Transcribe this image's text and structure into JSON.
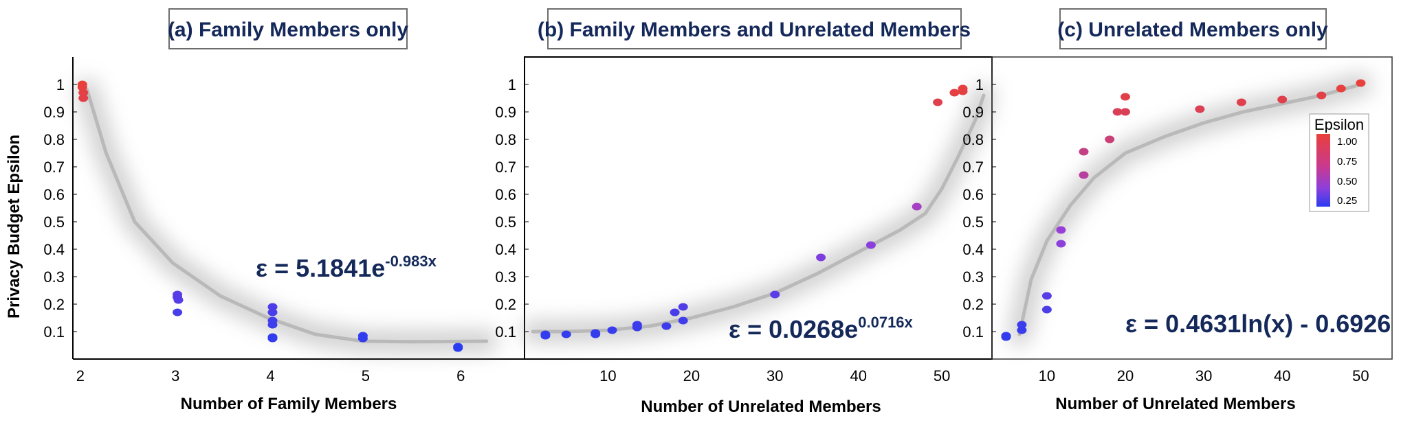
{
  "y_axis_title": "Privacy Budget Epsilon",
  "y_ticks": [
    "0.1",
    "0.2",
    "0.3",
    "0.4",
    "0.5",
    "0.6",
    "0.7",
    "0.8",
    "0.9",
    "1"
  ],
  "colors": {
    "title": "#14285a",
    "low": "#2a3cf0",
    "mid": "#9a3fd8",
    "high": "#e8403a",
    "trend": "#b9b9b9"
  },
  "legend": {
    "title": "Epsilon",
    "labels": [
      "1.00",
      "0.75",
      "0.50",
      "0.25"
    ]
  },
  "chart_data": [
    {
      "type": "scatter",
      "title": "(a) Family Members only",
      "xlabel": "Number of Family Members",
      "ylabel": "Privacy Budget Epsilon",
      "xlim": [
        1.95,
        6.7
      ],
      "ylim": [
        0,
        1.1
      ],
      "x_ticks": [
        "2",
        "3",
        "4",
        "5",
        "6"
      ],
      "equation": {
        "base": "ε = 5.1841e",
        "exp": "-0.983x"
      },
      "points": [
        {
          "x": 2.05,
          "y": 1.0
        },
        {
          "x": 2.05,
          "y": 0.99
        },
        {
          "x": 2.06,
          "y": 0.97
        },
        {
          "x": 2.06,
          "y": 0.95
        },
        {
          "x": 3.05,
          "y": 0.235
        },
        {
          "x": 3.05,
          "y": 0.225
        },
        {
          "x": 3.06,
          "y": 0.215
        },
        {
          "x": 3.05,
          "y": 0.17
        },
        {
          "x": 4.05,
          "y": 0.19
        },
        {
          "x": 4.05,
          "y": 0.17
        },
        {
          "x": 4.05,
          "y": 0.14
        },
        {
          "x": 4.05,
          "y": 0.125
        },
        {
          "x": 4.05,
          "y": 0.08
        },
        {
          "x": 4.05,
          "y": 0.075
        },
        {
          "x": 5.0,
          "y": 0.085
        },
        {
          "x": 5.0,
          "y": 0.075
        },
        {
          "x": 6.0,
          "y": 0.045
        },
        {
          "x": 6.0,
          "y": 0.04
        }
      ],
      "trend": [
        [
          2.1,
          0.98
        ],
        [
          2.3,
          0.75
        ],
        [
          2.6,
          0.5
        ],
        [
          3.0,
          0.35
        ],
        [
          3.5,
          0.23
        ],
        [
          4.0,
          0.15
        ],
        [
          4.5,
          0.09
        ],
        [
          5.0,
          0.065
        ],
        [
          5.5,
          0.063
        ],
        [
          6.0,
          0.064
        ],
        [
          6.3,
          0.065
        ]
      ]
    },
    {
      "type": "scatter",
      "title": "(b) Family Members and Unrelated Members",
      "xlabel": "Number of Unrelated Members",
      "ylabel": "",
      "xlim": [
        0,
        56
      ],
      "ylim": [
        0,
        1.1
      ],
      "x_ticks": [
        "10",
        "20",
        "30",
        "40",
        "50"
      ],
      "equation": {
        "base": "ε = 0.0268e",
        "exp": "0.0716x"
      },
      "points": [
        {
          "x": 2.5,
          "y": 0.09
        },
        {
          "x": 2.5,
          "y": 0.085
        },
        {
          "x": 5,
          "y": 0.09
        },
        {
          "x": 8.5,
          "y": 0.095
        },
        {
          "x": 8.5,
          "y": 0.09
        },
        {
          "x": 10.5,
          "y": 0.105
        },
        {
          "x": 13.5,
          "y": 0.125
        },
        {
          "x": 13.5,
          "y": 0.115
        },
        {
          "x": 17,
          "y": 0.12
        },
        {
          "x": 18,
          "y": 0.17
        },
        {
          "x": 19,
          "y": 0.19
        },
        {
          "x": 19,
          "y": 0.14
        },
        {
          "x": 30,
          "y": 0.235
        },
        {
          "x": 35.5,
          "y": 0.37
        },
        {
          "x": 41.5,
          "y": 0.415
        },
        {
          "x": 47,
          "y": 0.555
        },
        {
          "x": 49.5,
          "y": 0.935
        },
        {
          "x": 51.5,
          "y": 0.97
        },
        {
          "x": 52.5,
          "y": 0.985
        },
        {
          "x": 52.5,
          "y": 0.975
        }
      ],
      "trend": [
        [
          1,
          0.1
        ],
        [
          5,
          0.1
        ],
        [
          10,
          0.105
        ],
        [
          15,
          0.12
        ],
        [
          20,
          0.15
        ],
        [
          25,
          0.19
        ],
        [
          30,
          0.24
        ],
        [
          35,
          0.31
        ],
        [
          40,
          0.39
        ],
        [
          45,
          0.47
        ],
        [
          48,
          0.53
        ],
        [
          50,
          0.62
        ],
        [
          52,
          0.74
        ],
        [
          54,
          0.87
        ],
        [
          55,
          0.96
        ]
      ]
    },
    {
      "type": "scatter",
      "title": "(c) Unrelated Members only",
      "xlabel": "Number of Unrelated Members",
      "ylabel": "",
      "xlim": [
        3,
        54
      ],
      "ylim": [
        0,
        1.1
      ],
      "x_ticks": [
        "10",
        "20",
        "30",
        "40",
        "50"
      ],
      "equation": {
        "base": "ε = 0.4631ln(x) - 0.6926",
        "exp": ""
      },
      "points": [
        {
          "x": 4.8,
          "y": 0.085
        },
        {
          "x": 4.8,
          "y": 0.08
        },
        {
          "x": 6.8,
          "y": 0.125
        },
        {
          "x": 6.8,
          "y": 0.105
        },
        {
          "x": 10,
          "y": 0.23
        },
        {
          "x": 10,
          "y": 0.18
        },
        {
          "x": 11.8,
          "y": 0.47
        },
        {
          "x": 11.8,
          "y": 0.42
        },
        {
          "x": 14.7,
          "y": 0.755
        },
        {
          "x": 14.7,
          "y": 0.67
        },
        {
          "x": 18,
          "y": 0.8
        },
        {
          "x": 19,
          "y": 0.9
        },
        {
          "x": 20,
          "y": 0.955
        },
        {
          "x": 20,
          "y": 0.9
        },
        {
          "x": 29.5,
          "y": 0.91
        },
        {
          "x": 34.8,
          "y": 0.935
        },
        {
          "x": 40,
          "y": 0.945
        },
        {
          "x": 45,
          "y": 0.96
        },
        {
          "x": 47.5,
          "y": 0.985
        },
        {
          "x": 50,
          "y": 1.005
        }
      ],
      "trend": [
        [
          6.5,
          0.09
        ],
        [
          8,
          0.29
        ],
        [
          10,
          0.43
        ],
        [
          13,
          0.56
        ],
        [
          16,
          0.66
        ],
        [
          20,
          0.75
        ],
        [
          25,
          0.81
        ],
        [
          30,
          0.86
        ],
        [
          35,
          0.9
        ],
        [
          40,
          0.93
        ],
        [
          45,
          0.96
        ],
        [
          50,
          1.0
        ]
      ]
    }
  ]
}
